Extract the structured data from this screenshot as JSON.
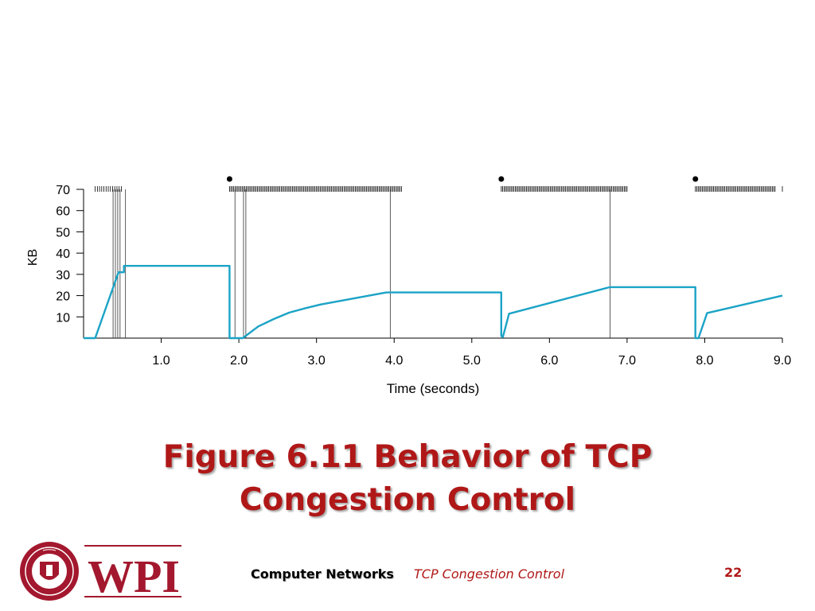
{
  "slide": {
    "title_line1": "Figure 6.11 Behavior of TCP",
    "title_line2": "Congestion Control",
    "footer_course": "Computer Networks",
    "footer_topic": "TCP Congestion Control",
    "page_number": "22",
    "logo_text": "WPI",
    "seal_text": "WORCESTER POLYTECHNIC INSTITUTE · 1865",
    "colors": {
      "title": "#b01818",
      "line": "#1ba3c6",
      "logo_red": "#a3182e"
    }
  },
  "chart_data": {
    "type": "line",
    "ylabel": "KB",
    "xlabel": "Time (seconds)",
    "xlim": [
      0,
      9
    ],
    "ylim": [
      0,
      70
    ],
    "xticks": [
      "1.0",
      "2.0",
      "3.0",
      "4.0",
      "5.0",
      "6.0",
      "7.0",
      "8.0",
      "9.0"
    ],
    "xtick_values": [
      1,
      2,
      3,
      4,
      5,
      6,
      7,
      8,
      9
    ],
    "yticks": [
      "10",
      "20",
      "30",
      "40",
      "50",
      "60",
      "70"
    ],
    "ytick_values": [
      10,
      20,
      30,
      40,
      50,
      60,
      70
    ],
    "series": [
      {
        "color": "#1ba3c6",
        "points": [
          [
            0,
            0
          ],
          [
            0.15,
            0
          ],
          [
            0.45,
            31
          ],
          [
            0.52,
            31
          ],
          [
            0.52,
            34
          ],
          [
            1.88,
            34
          ],
          [
            1.88,
            0
          ],
          [
            2.05,
            0
          ],
          [
            2.25,
            5.5
          ],
          [
            2.45,
            9
          ],
          [
            2.65,
            12
          ],
          [
            2.85,
            14
          ],
          [
            3.05,
            15.8
          ],
          [
            3.3,
            17.5
          ],
          [
            3.6,
            19.5
          ],
          [
            3.9,
            21.5
          ],
          [
            5.38,
            21.5
          ],
          [
            5.38,
            1
          ],
          [
            5.4,
            0.5
          ],
          [
            5.48,
            11.5
          ],
          [
            6.78,
            24
          ],
          [
            7.88,
            24
          ],
          [
            7.88,
            0
          ],
          [
            7.92,
            0
          ],
          [
            8.03,
            11.8
          ],
          [
            9.0,
            20
          ]
        ]
      }
    ],
    "packet_ticks": [
      {
        "from": 0.15,
        "to": 0.5,
        "step": 0.028
      },
      {
        "from": 1.88,
        "to": 4.1,
        "step": 0.018
      },
      {
        "from": 5.38,
        "to": 7.0,
        "step": 0.018
      },
      {
        "from": 7.88,
        "to": 8.92,
        "step": 0.018
      },
      {
        "from": 9.0,
        "to": 9.0,
        "step": 1
      }
    ],
    "timeouts": [
      1.88,
      5.38,
      7.88
    ],
    "vlines": [
      0.38,
      0.41,
      0.44,
      0.47,
      0.54,
      1.95,
      2.06,
      2.09,
      3.95,
      6.78
    ]
  }
}
